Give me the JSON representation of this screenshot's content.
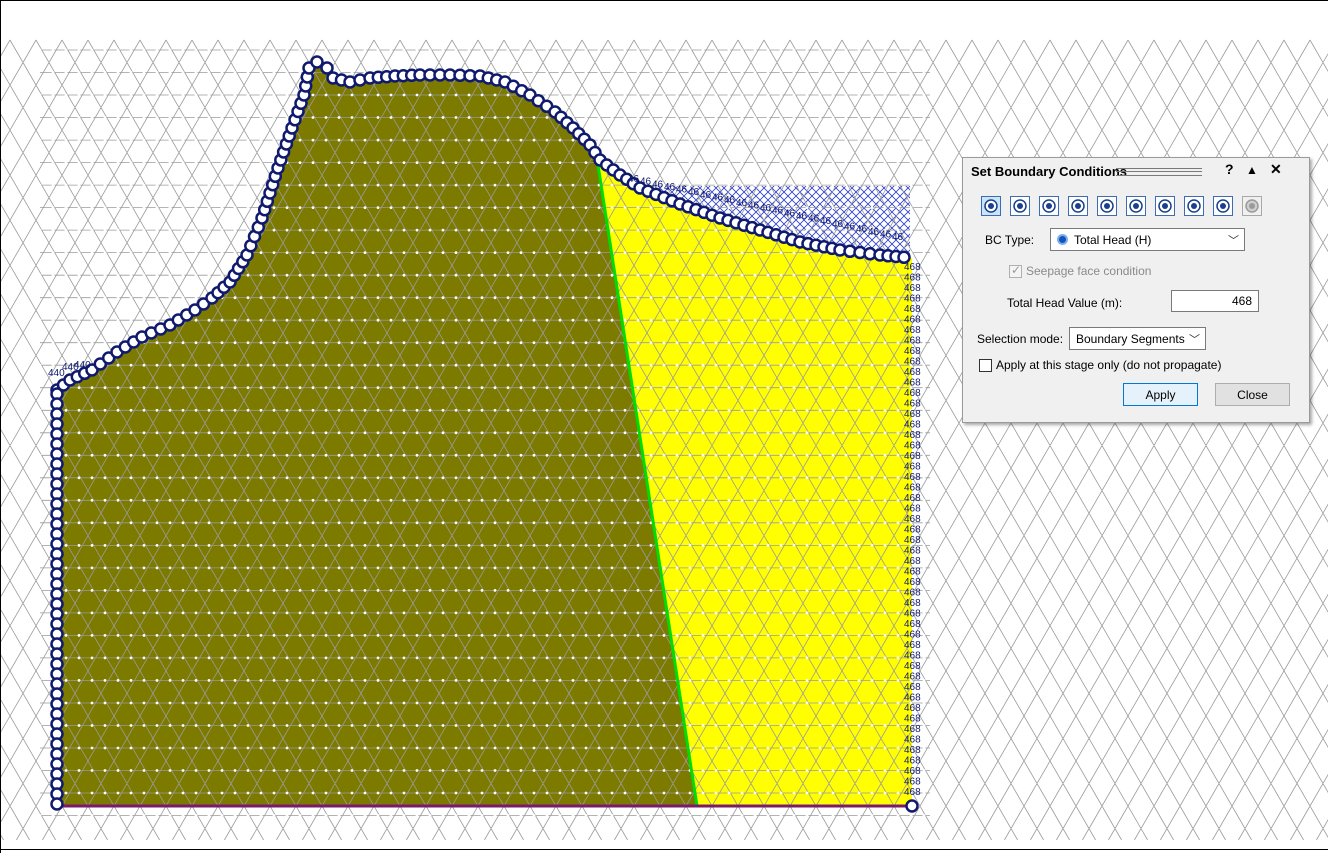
{
  "canvas": {
    "upstream_head_labels": [
      "440",
      "440",
      "440"
    ],
    "downstream_head_label": "468",
    "top_head_label": "46",
    "colors": {
      "dam_core": "#7d7a00",
      "downstream_fill": "#ffff00",
      "mesh_line": "#9b9b9b",
      "mesh_node": "#ffffff",
      "boundary_marker": "#0f1a6e",
      "material_boundary": "#00dd00",
      "base_line": "#7b1a6a",
      "hatch": "#2a3cd0"
    }
  },
  "dialog": {
    "title": "Set Boundary Conditions",
    "help_label": "?",
    "collapse_label": "▲",
    "close_label": "✕",
    "bc_icons": [
      {
        "name": "total-head-icon",
        "active": true
      },
      {
        "name": "pressure-head-icon"
      },
      {
        "name": "seepage-face-icon"
      },
      {
        "name": "unknown-bc-icon"
      },
      {
        "name": "nodal-flow-icon"
      },
      {
        "name": "infiltration-icon"
      },
      {
        "name": "unit-flow-icon"
      },
      {
        "name": "zero-pressure-icon"
      },
      {
        "name": "reset-bc-icon"
      },
      {
        "name": "disabled-bc-icon",
        "disabled": true
      }
    ],
    "bc_type_label": "BC Type:",
    "bc_type_value": "Total Head (H)",
    "seepage_face_label": "Seepage face condition",
    "total_head_label": "Total Head Value (m):",
    "total_head_value": "468",
    "selection_mode_label": "Selection mode:",
    "selection_mode_value": "Boundary Segments",
    "apply_stage_label": "Apply at this stage only (do not propagate)",
    "apply_button": "Apply",
    "close_button": "Close"
  }
}
